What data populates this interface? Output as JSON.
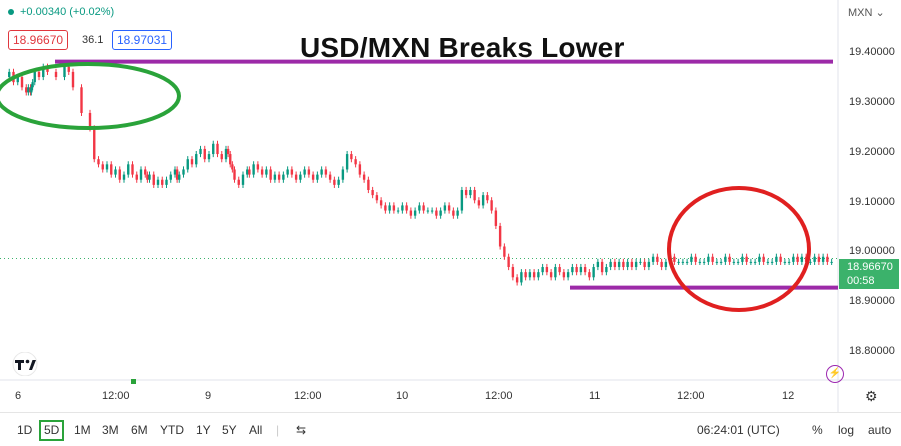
{
  "header": {
    "change_text": "+0.00340 (+0.02%)",
    "sell_price": "18.96670",
    "spread": "36.1",
    "buy_price": "18.97031",
    "currency": "MXN"
  },
  "annotation": {
    "headline": "USD/MXN Breaks Lower",
    "upper_line_level": 19.35,
    "lower_line_level": 18.91,
    "line_color": "#9c2aa8",
    "green_circle_color": "#2aa33a",
    "red_circle_color": "#e02020"
  },
  "last_price": {
    "value": "18.96670",
    "countdown": "00:58",
    "color": "#3bb26b"
  },
  "chart_data": {
    "type": "line",
    "series": [
      {
        "x": [
          0,
          0.1,
          0.2,
          0.3,
          0.4,
          0.5,
          0.55,
          0.6,
          0.62,
          0.65,
          0.7,
          0.8,
          0.9,
          1.0,
          1.2,
          1.4,
          1.5,
          1.6,
          1.8,
          2.0,
          2.1,
          2.2,
          2.3,
          2.4,
          2.5,
          2.6,
          2.7,
          2.8,
          2.9,
          3.0,
          3.1,
          3.2,
          3.3,
          3.35,
          3.4,
          3.5,
          3.6,
          3.7,
          3.8,
          3.9,
          4.0,
          4.05,
          4.1,
          4.2,
          4.3,
          4.4,
          4.5,
          4.6,
          4.7,
          4.8,
          4.9,
          5.0,
          5.1,
          5.2,
          5.25,
          5.3,
          5.35,
          5.4,
          5.5,
          5.6,
          5.7,
          5.75,
          5.85,
          5.95,
          6.05,
          6.15,
          6.25,
          6.35,
          6.45,
          6.55,
          6.65,
          6.75,
          6.85,
          6.95,
          7.05,
          7.15,
          7.25,
          7.35,
          7.45,
          7.55,
          7.65,
          7.75,
          7.85,
          7.95,
          8.05,
          8.15,
          8.25,
          8.35,
          8.45,
          8.55,
          8.65,
          8.75,
          8.85,
          8.95,
          9.05,
          9.15,
          9.25,
          9.35,
          9.45,
          9.55,
          9.65,
          9.75,
          9.85,
          9.95,
          10.05,
          10.15,
          10.25,
          10.35,
          10.45,
          10.55,
          10.65,
          10.75,
          10.85,
          10.95,
          11.05,
          11.15,
          11.25,
          11.35,
          11.45,
          11.55,
          11.65,
          11.75,
          11.85,
          11.95,
          12.05,
          12.15,
          12.25,
          12.35,
          12.45,
          12.55,
          12.65,
          12.75,
          12.85,
          12.95,
          13.05,
          13.15,
          13.25,
          13.35,
          13.45,
          13.55,
          13.65,
          13.75,
          13.85,
          13.95,
          14.05,
          14.15,
          14.25,
          14.35,
          14.45,
          14.55,
          14.65,
          14.75,
          14.85,
          14.95,
          15.05,
          15.15,
          15.25,
          15.35,
          15.45,
          15.55,
          15.65,
          15.75,
          15.85,
          15.95,
          16.05,
          16.15,
          16.25,
          16.35,
          16.45,
          16.55,
          16.65,
          16.75,
          16.85,
          16.95,
          17.05,
          17.15,
          17.25,
          17.35,
          17.45,
          17.55,
          17.65,
          17.75,
          17.85,
          17.95,
          18.05,
          18.15,
          18.25,
          18.35,
          18.45,
          18.55,
          18.65,
          18.75,
          18.85,
          18.95,
          19.05,
          19.15,
          19.25,
          19.35,
          19.45
        ],
        "y": [
          19.32,
          19.33,
          19.31,
          19.32,
          19.3,
          19.29,
          19.3,
          19.29,
          19.3,
          19.31,
          19.33,
          19.32,
          19.34,
          19.33,
          19.32,
          19.34,
          19.33,
          19.3,
          19.25,
          19.22,
          19.16,
          19.15,
          19.14,
          19.15,
          19.13,
          19.14,
          19.12,
          19.13,
          19.15,
          19.13,
          19.12,
          19.14,
          19.13,
          19.12,
          19.13,
          19.11,
          19.12,
          19.11,
          19.12,
          19.13,
          19.14,
          19.12,
          19.13,
          19.14,
          19.16,
          19.15,
          19.17,
          19.18,
          19.16,
          19.17,
          19.19,
          19.17,
          19.16,
          19.18,
          19.17,
          19.15,
          19.14,
          19.12,
          19.11,
          19.13,
          19.14,
          19.13,
          19.15,
          19.14,
          19.13,
          19.14,
          19.12,
          19.13,
          19.12,
          19.13,
          19.14,
          19.13,
          19.12,
          19.13,
          19.14,
          19.13,
          19.12,
          19.13,
          19.14,
          19.13,
          19.12,
          19.11,
          19.12,
          19.14,
          19.17,
          19.16,
          19.15,
          19.13,
          19.12,
          19.1,
          19.09,
          19.08,
          19.07,
          19.06,
          19.07,
          19.06,
          19.06,
          19.07,
          19.06,
          19.05,
          19.06,
          19.07,
          19.06,
          19.06,
          19.06,
          19.05,
          19.06,
          19.07,
          19.06,
          19.05,
          19.06,
          19.1,
          19.09,
          19.1,
          19.08,
          19.07,
          19.09,
          19.08,
          19.06,
          19.03,
          18.99,
          18.97,
          18.95,
          18.93,
          18.92,
          18.94,
          18.93,
          18.94,
          18.93,
          18.94,
          18.95,
          18.94,
          18.93,
          18.95,
          18.94,
          18.93,
          18.94,
          18.95,
          18.94,
          18.95,
          18.94,
          18.93,
          18.95,
          18.96,
          18.94,
          18.95,
          18.96,
          18.95,
          18.96,
          18.95,
          18.96,
          18.95,
          18.96,
          18.96,
          18.95,
          18.96,
          18.97,
          18.96,
          18.95,
          18.96,
          18.97,
          18.96,
          18.96,
          18.96,
          18.96,
          18.97,
          18.96,
          18.96,
          18.96,
          18.97,
          18.96,
          18.96,
          18.96,
          18.97,
          18.96,
          18.96,
          18.96,
          18.97,
          18.96,
          18.96,
          18.96,
          18.97,
          18.96,
          18.96,
          18.96,
          18.97,
          18.96,
          18.96,
          18.96,
          18.97,
          18.96,
          18.97,
          18.96,
          18.96,
          18.97,
          18.96,
          18.97,
          18.96,
          18.96
        ]
      }
    ],
    "x_ticks": [
      "6",
      "12:00",
      "9",
      "12:00",
      "10",
      "12:00",
      "11",
      "12:00",
      "12"
    ],
    "y_ticks": [
      "19.40000",
      "19.30000",
      "19.20000",
      "19.10000",
      "19.00000",
      "18.90000",
      "18.80000"
    ],
    "y_tick_values": [
      19.4,
      19.3,
      19.2,
      19.1,
      19.0,
      18.9,
      18.8
    ],
    "ylim": [
      18.73,
      19.47
    ],
    "grid": false,
    "up_color": "#089981",
    "down_color": "#f23645"
  },
  "toolbar": {
    "ranges": [
      "1D",
      "5D",
      "1M",
      "3M",
      "6M",
      "YTD",
      "1Y",
      "5Y",
      "All"
    ],
    "active_range": "5D",
    "time": "06:24:01 (UTC)",
    "percent": "%",
    "log": "log",
    "auto": "auto"
  }
}
